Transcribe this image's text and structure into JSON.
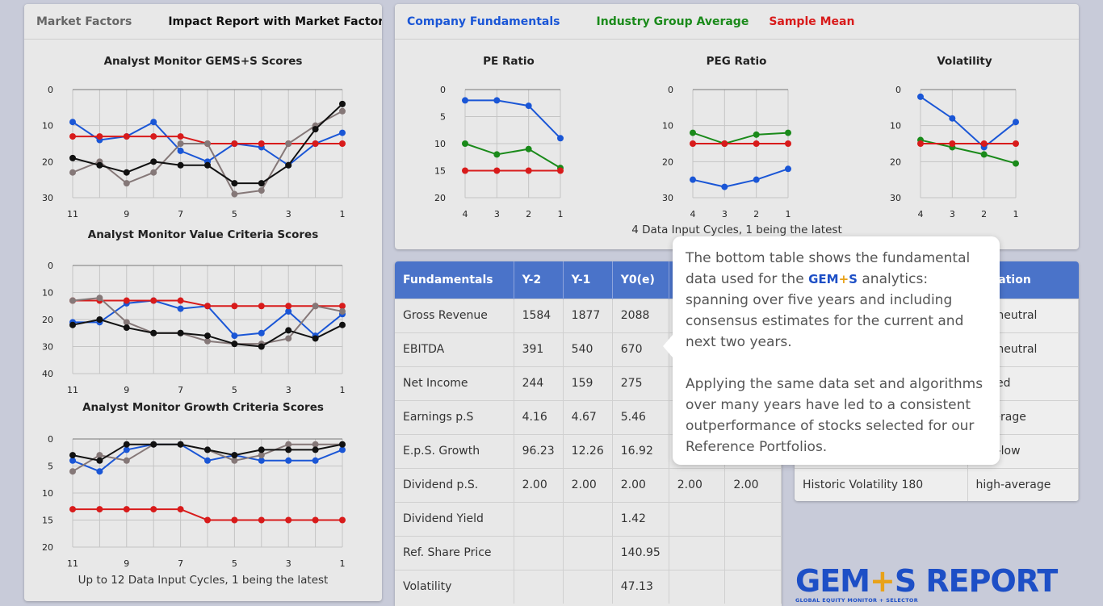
{
  "left_panel": {
    "tabs": [
      "Market Factors",
      "Impact Report with Market Factors"
    ],
    "caption": "Up to 12 Data Input Cycles, 1 being the latest"
  },
  "right_panel": {
    "legend": [
      {
        "label": "Company Fundamentals",
        "color": "#1a56d6"
      },
      {
        "label": "Industry Group Average",
        "color": "#1a8a1a"
      },
      {
        "label": "Sample Mean",
        "color": "#d81b1b"
      }
    ],
    "caption": "4 Data Input Cycles, 1 being the latest"
  },
  "colors": {
    "blue": "#1a56d6",
    "red": "#d81b1b",
    "black": "#111111",
    "gray": "#857878",
    "green": "#1a8a1a",
    "accent": "#4a73c9"
  },
  "chart_data": [
    {
      "type": "line",
      "title": "Analyst Monitor GEMS+S Scores",
      "inverted_y": true,
      "x_ticks": [
        "11",
        "9",
        "7",
        "5",
        "3",
        "1"
      ],
      "ylim": [
        0,
        30
      ],
      "y_ticks": [
        0,
        10,
        20,
        30
      ],
      "x": [
        11,
        10,
        9,
        8,
        7,
        6,
        5,
        4,
        3,
        2,
        1
      ],
      "series": [
        {
          "color": "blue",
          "values": [
            9,
            14,
            13,
            9,
            17,
            20,
            15,
            16,
            21,
            15,
            12
          ]
        },
        {
          "color": "red",
          "values": [
            13,
            13,
            13,
            13,
            13,
            15,
            15,
            15,
            15,
            15,
            15
          ]
        },
        {
          "color": "gray",
          "values": [
            23,
            20,
            26,
            23,
            15,
            15,
            29,
            28,
            15,
            10,
            6
          ]
        },
        {
          "color": "black",
          "values": [
            19,
            21,
            23,
            20,
            21,
            21,
            26,
            26,
            21,
            11,
            4
          ]
        }
      ]
    },
    {
      "type": "line",
      "title": "Analyst Monitor Value Criteria Scores",
      "inverted_y": true,
      "x_ticks": [
        "11",
        "9",
        "7",
        "5",
        "3",
        "1"
      ],
      "ylim": [
        0,
        40
      ],
      "y_ticks": [
        0,
        10,
        20,
        30,
        40
      ],
      "x": [
        11,
        10,
        9,
        8,
        7,
        6,
        5,
        4,
        3,
        2,
        1
      ],
      "series": [
        {
          "color": "blue",
          "values": [
            21,
            21,
            14,
            13,
            16,
            15,
            26,
            25,
            17,
            26,
            18
          ]
        },
        {
          "color": "red",
          "values": [
            13,
            13,
            13,
            13,
            13,
            15,
            15,
            15,
            15,
            15,
            15
          ]
        },
        {
          "color": "gray",
          "values": [
            13,
            12,
            21,
            25,
            25,
            28,
            29,
            29,
            27,
            15,
            17
          ]
        },
        {
          "color": "black",
          "values": [
            22,
            20,
            23,
            25,
            25,
            26,
            29,
            30,
            24,
            27,
            22
          ]
        }
      ]
    },
    {
      "type": "line",
      "title": "Analyst Monitor Growth Criteria Scores",
      "inverted_y": true,
      "x_ticks": [
        "11",
        "9",
        "7",
        "5",
        "3",
        "1"
      ],
      "ylim": [
        0,
        20
      ],
      "y_ticks": [
        0,
        5,
        10,
        15,
        20
      ],
      "x": [
        11,
        10,
        9,
        8,
        7,
        6,
        5,
        4,
        3,
        2,
        1
      ],
      "series": [
        {
          "color": "blue",
          "values": [
            4,
            6,
            2,
            1,
            1,
            4,
            3,
            4,
            4,
            4,
            2
          ]
        },
        {
          "color": "red",
          "values": [
            13,
            13,
            13,
            13,
            13,
            15,
            15,
            15,
            15,
            15,
            15
          ]
        },
        {
          "color": "gray",
          "values": [
            6,
            3,
            4,
            1,
            1,
            2,
            4,
            3,
            1,
            1,
            1
          ]
        },
        {
          "color": "black",
          "values": [
            3,
            4,
            1,
            1,
            1,
            2,
            3,
            2,
            2,
            2,
            1
          ]
        }
      ]
    },
    {
      "type": "line",
      "title": "PE Ratio",
      "inverted_y": true,
      "x_ticks": [
        "4",
        "3",
        "2",
        "1"
      ],
      "ylim": [
        0,
        20
      ],
      "y_ticks": [
        0,
        5,
        10,
        15,
        20
      ],
      "x": [
        4,
        3,
        2,
        1
      ],
      "series": [
        {
          "color": "blue",
          "values": [
            2,
            2,
            3,
            9
          ]
        },
        {
          "color": "green",
          "values": [
            10,
            12,
            11,
            14.5
          ]
        },
        {
          "color": "red",
          "values": [
            15,
            15,
            15,
            15
          ]
        }
      ]
    },
    {
      "type": "line",
      "title": "PEG Ratio",
      "inverted_y": true,
      "x_ticks": [
        "4",
        "3",
        "2",
        "1"
      ],
      "ylim": [
        0,
        30
      ],
      "y_ticks": [
        0,
        10,
        20,
        30
      ],
      "x": [
        4,
        3,
        2,
        1
      ],
      "series": [
        {
          "color": "blue",
          "values": [
            25,
            27,
            25,
            22
          ]
        },
        {
          "color": "green",
          "values": [
            12,
            15,
            12.5,
            12
          ]
        },
        {
          "color": "red",
          "values": [
            15,
            15,
            15,
            15
          ]
        }
      ]
    },
    {
      "type": "line",
      "title": "Volatility",
      "inverted_y": true,
      "x_ticks": [
        "4",
        "3",
        "2",
        "1"
      ],
      "ylim": [
        0,
        30
      ],
      "y_ticks": [
        0,
        10,
        20,
        30
      ],
      "x": [
        4,
        3,
        2,
        1
      ],
      "series": [
        {
          "color": "blue",
          "values": [
            2,
            8,
            16,
            9
          ]
        },
        {
          "color": "green",
          "values": [
            14,
            16,
            18,
            20.5
          ]
        },
        {
          "color": "red",
          "values": [
            15,
            15,
            15,
            15
          ]
        }
      ]
    }
  ],
  "fundamentals_table": {
    "headers": [
      "Fundamentals",
      "Y-2",
      "Y-1",
      "Y0(e)",
      "",
      ""
    ],
    "rows": [
      [
        "Gross Revenue",
        "1584",
        "1877",
        "2088",
        "",
        ""
      ],
      [
        "EBITDA",
        "391",
        "540",
        "670",
        "",
        ""
      ],
      [
        "Net Income",
        "244",
        "159",
        "275",
        "",
        ""
      ],
      [
        "Earnings p.S",
        "4.16",
        "4.67",
        "5.46",
        "",
        ""
      ],
      [
        "E.p.S. Growth",
        "96.23",
        "12.26",
        "16.92",
        "",
        ""
      ],
      [
        "Dividend p.S.",
        "2.00",
        "2.00",
        "2.00",
        "2.00",
        "2.00"
      ],
      [
        "Dividend Yield",
        "",
        "",
        "1.42",
        "",
        ""
      ],
      [
        "Ref. Share Price",
        "",
        "",
        "140.95",
        "",
        ""
      ],
      [
        "Volatility",
        "",
        "",
        "47.13",
        "",
        ""
      ]
    ]
  },
  "qualification_table": {
    "headers": [
      "",
      "lification"
    ],
    "rows": [
      [
        "",
        "ive-neutral"
      ],
      [
        "",
        "ive-neutral"
      ],
      [
        "",
        "pplied"
      ],
      [
        "",
        "-average"
      ],
      [
        "",
        "age-low"
      ],
      [
        "Historic Volatility 180",
        "high-average"
      ]
    ]
  },
  "popup": {
    "p1_before": "The bottom table shows the fundamental data used for the",
    "p1_brand_a": "GEM",
    "p1_brand_plus": "+",
    "p1_brand_b": "S",
    "p1_after": "analytics: spanning over five years and including consensus estimates for the current and next two years.",
    "p2": "Applying the same data set and algorithms over many years have led to a consistent outperformance of stocks selected for our Reference Portfolios."
  },
  "logo": {
    "part_a": "GEM",
    "plus": "+",
    "part_b": "S REPORT",
    "sub": "GLOBAL EQUITY MONITOR + SELECTOR"
  }
}
